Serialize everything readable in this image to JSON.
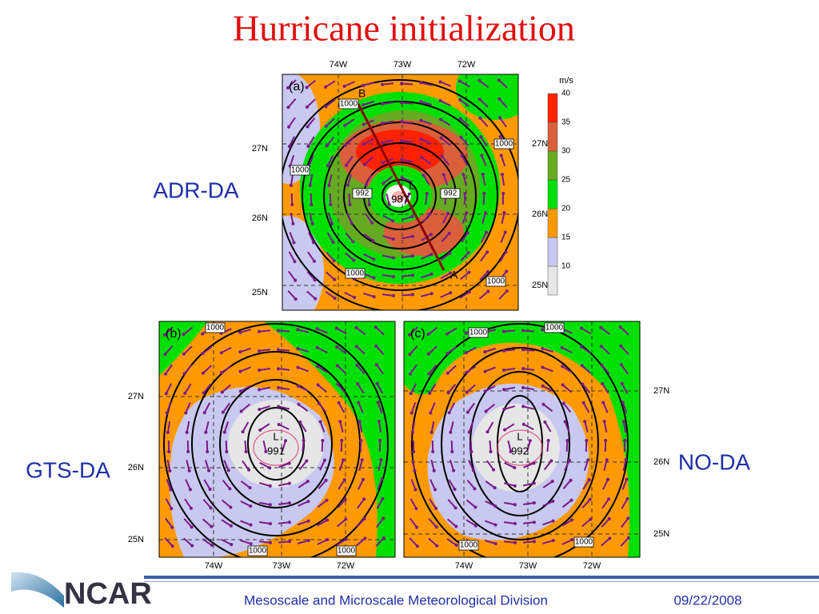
{
  "title": "Hurricane initialization",
  "panels": [
    {
      "label": "(a)",
      "name": "ADR-DA",
      "lon_labels": [
        "74W",
        "73W",
        "72W"
      ],
      "lat_labels": [
        "27N",
        "26N",
        "25N"
      ],
      "center_pressure": "987",
      "low_mark": "L",
      "contour_labels": [
        "1000",
        "1000",
        "1000",
        "1000",
        "1000",
        "992",
        "992"
      ],
      "section_labels": [
        "B",
        "A"
      ]
    },
    {
      "label": "(b)",
      "name": "GTS-DA",
      "lon_labels": [
        "74W",
        "73W",
        "72W"
      ],
      "lat_labels": [
        "27N",
        "26N",
        "25N"
      ],
      "center_pressure": "991",
      "low_mark": "L",
      "contour_labels": [
        "1000",
        "1000",
        "1000"
      ]
    },
    {
      "label": "(c)",
      "name": "NO-DA",
      "lon_labels": [
        "74W",
        "73W",
        "72W"
      ],
      "lat_labels": [
        "27N",
        "26N",
        "25N"
      ],
      "center_pressure": "992",
      "low_mark": "L",
      "contour_labels": [
        "1000",
        "1000",
        "1000",
        "1000"
      ]
    }
  ],
  "colorbar": {
    "unit": "m/s",
    "levels": [
      10,
      15,
      20,
      25,
      30,
      35,
      40
    ]
  },
  "footer": {
    "logo": "NCAR",
    "division": "Mesoscale and Microscale Meteorological Division",
    "date": "09/22/2008"
  }
}
